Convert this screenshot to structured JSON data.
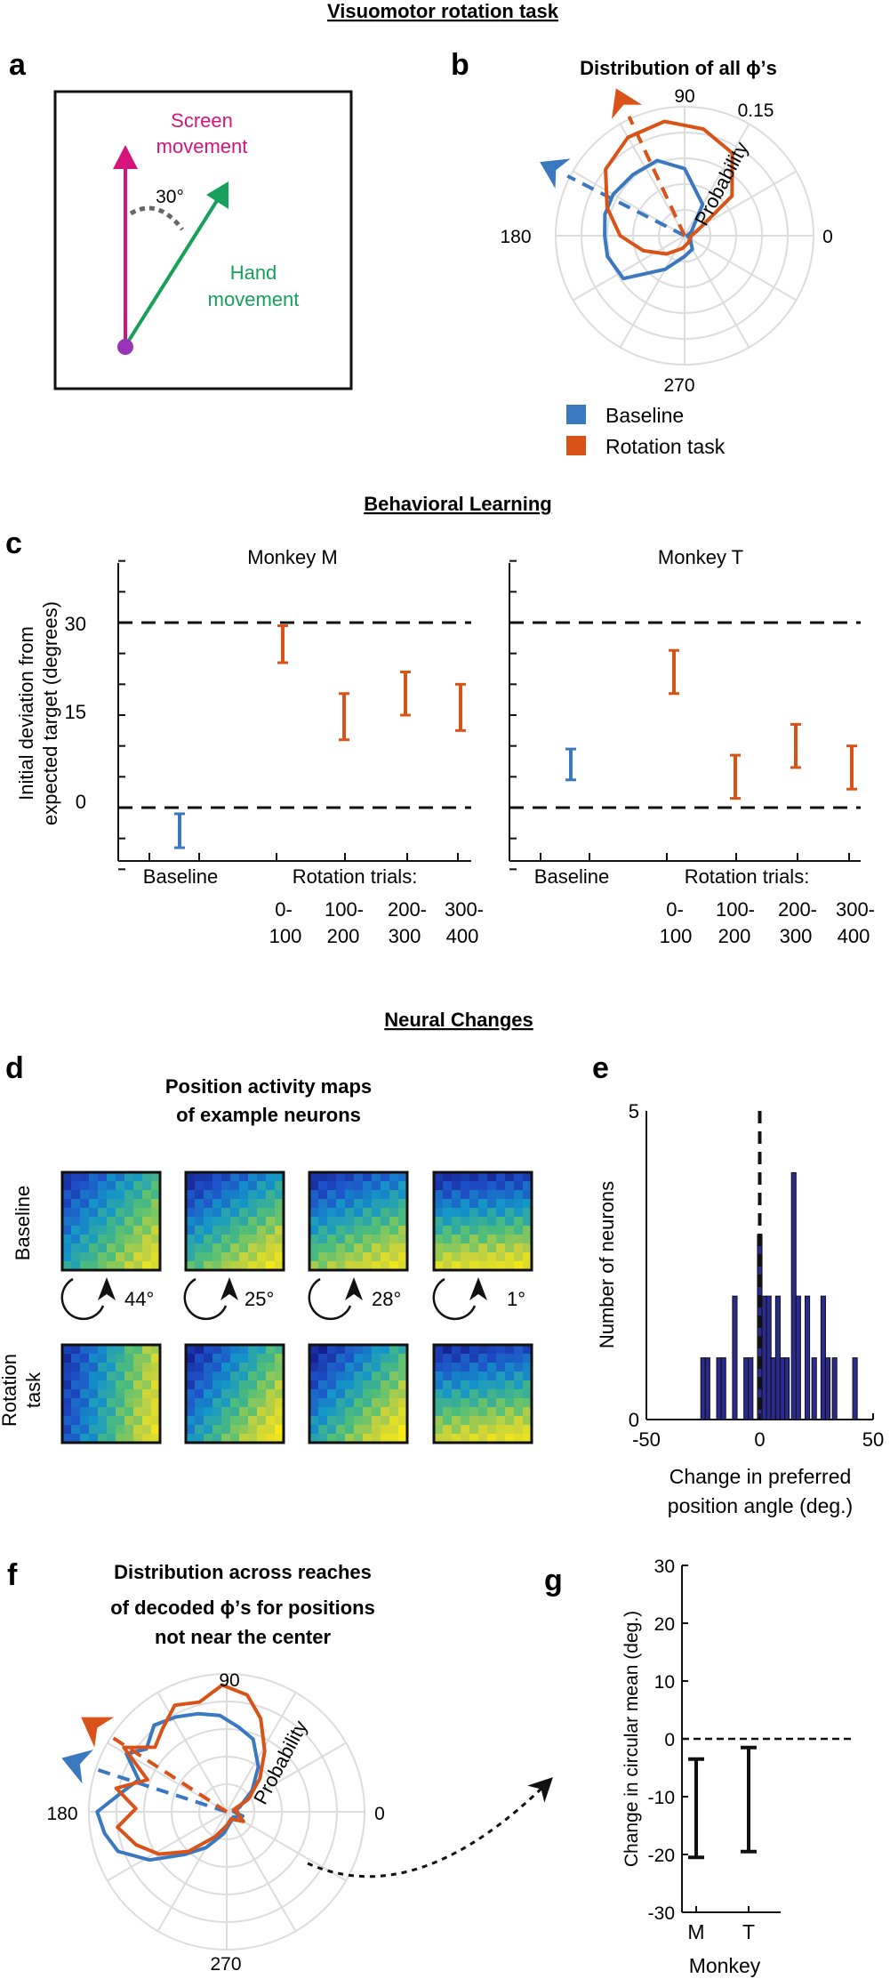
{
  "section_titles": {
    "visuomotor": "Visuomotor rotation task",
    "behavioral": "Behavioral Learning",
    "neural": "Neural Changes"
  },
  "panel_labels": {
    "a": "a",
    "b": "b",
    "c": "c",
    "d": "d",
    "e": "e",
    "f": "f",
    "g": "g"
  },
  "colors": {
    "baseline": "#3a78c0",
    "rotation": "#d95319",
    "screen": "#d4147a",
    "hand": "#17a05a",
    "origin": "#9a34b8",
    "grid": "#dcdcdc",
    "bar": "#2a2a8f"
  },
  "panel_a": {
    "screen_label": [
      "Screen",
      "movement"
    ],
    "hand_label": [
      "Hand",
      "movement"
    ],
    "angle_label": "30°"
  },
  "panel_b": {
    "title": "Distribution of all ϕ’s",
    "angle_labels": {
      "deg90": "90",
      "deg180": "180",
      "deg0": "0",
      "deg270": "270"
    },
    "radius_label": "0.15",
    "radial_axis_label": "Probability",
    "legend": [
      {
        "label": "Baseline",
        "color": "#3a78c0"
      },
      {
        "label": "Rotation task",
        "color": "#d95319"
      }
    ]
  },
  "panel_c": {
    "ylabel": [
      "Initial deviation from",
      "expected target (degrees)"
    ],
    "yticks": [
      "30",
      "15",
      "0"
    ],
    "baseline_label": "Baseline",
    "rotation_label": "Rotation trials:",
    "bins": [
      {
        "top": "0-",
        "bottom": "100"
      },
      {
        "top": "100-",
        "bottom": "200"
      },
      {
        "top": "200-",
        "bottom": "300"
      },
      {
        "top": "300-",
        "bottom": "400"
      }
    ]
  },
  "panel_d": {
    "title": [
      "Position activity maps",
      "of example neurons"
    ],
    "row_labels": {
      "baseline": "Baseline",
      "rotation": [
        "Rotation",
        "task"
      ]
    },
    "rotations": [
      "44°",
      "25°",
      "28°",
      "1°"
    ]
  },
  "panel_f": {
    "title": [
      "Distribution across reaches",
      "of decoded ϕ’s for positions",
      "not near the center"
    ],
    "angle_labels": {
      "deg90": "90",
      "deg180": "180",
      "deg0": "0",
      "deg270": "270"
    },
    "radial_axis_label": "Probability"
  },
  "chart_data": [
    {
      "id": "panel_b_polar",
      "type": "polar-line",
      "title": "Distribution of all ϕ’s",
      "radial_label": "Probability",
      "radial_max": 0.15,
      "series": [
        {
          "name": "Baseline",
          "circular_mean_deg": 153
        },
        {
          "name": "Rotation task",
          "circular_mean_deg": 115
        }
      ]
    },
    {
      "id": "panel_c_monkey_m",
      "type": "errorbar",
      "title": "Monkey M",
      "ylabel": "Initial deviation from expected target (degrees)",
      "ylim": [
        -10,
        40
      ],
      "yticks": [
        0,
        15,
        30
      ],
      "reference_lines": [
        0,
        30
      ],
      "categories": [
        "Baseline",
        "0-100",
        "100-200",
        "200-300",
        "300-400"
      ],
      "series": [
        {
          "name": "Baseline",
          "lower": [
            -6.5
          ],
          "upper": [
            -1
          ]
        },
        {
          "name": "Rotation task",
          "lower": [
            23.5,
            11,
            15,
            12.5
          ],
          "upper": [
            29.5,
            18.5,
            22,
            20
          ]
        }
      ]
    },
    {
      "id": "panel_c_monkey_t",
      "type": "errorbar",
      "title": "Monkey T",
      "ylim": [
        -10,
        40
      ],
      "yticks": [
        0,
        15,
        30
      ],
      "reference_lines": [
        0,
        30
      ],
      "categories": [
        "Baseline",
        "0-100",
        "100-200",
        "200-300",
        "300-400"
      ],
      "series": [
        {
          "name": "Baseline",
          "lower": [
            4.5
          ],
          "upper": [
            9.5
          ]
        },
        {
          "name": "Rotation task",
          "lower": [
            18.5,
            1.5,
            6.5,
            3
          ],
          "upper": [
            25.5,
            8.5,
            13.5,
            10
          ]
        }
      ]
    },
    {
      "id": "panel_e_hist",
      "type": "bar",
      "xlabel": "Change in preferred position angle (deg.)",
      "ylabel": "Number of neurons",
      "xlim": [
        -50,
        50
      ],
      "ylim": [
        0,
        5
      ],
      "xticks": [
        -50,
        0,
        50
      ],
      "yticks": [
        0,
        5
      ],
      "reference_line_x": 0,
      "bin_width": 2,
      "bins": [
        {
          "x": -25,
          "count": 1
        },
        {
          "x": -23,
          "count": 1
        },
        {
          "x": -18,
          "count": 1
        },
        {
          "x": -16,
          "count": 1
        },
        {
          "x": -11,
          "count": 2
        },
        {
          "x": -6,
          "count": 1
        },
        {
          "x": -4,
          "count": 1
        },
        {
          "x": 0,
          "count": 3
        },
        {
          "x": 2,
          "count": 2
        },
        {
          "x": 4,
          "count": 2
        },
        {
          "x": 6,
          "count": 1
        },
        {
          "x": 8,
          "count": 2
        },
        {
          "x": 10,
          "count": 1
        },
        {
          "x": 12,
          "count": 1
        },
        {
          "x": 15,
          "count": 4
        },
        {
          "x": 17,
          "count": 2
        },
        {
          "x": 21,
          "count": 2
        },
        {
          "x": 24,
          "count": 1
        },
        {
          "x": 28,
          "count": 2
        },
        {
          "x": 30,
          "count": 1
        },
        {
          "x": 33,
          "count": 1
        },
        {
          "x": 42,
          "count": 1
        }
      ]
    },
    {
      "id": "panel_f_polar",
      "type": "polar-line",
      "title": "Distribution across reaches of decoded ϕ’s for positions not near the center",
      "radial_label": "Probability",
      "series": [
        {
          "name": "Baseline",
          "circular_mean_deg": 162
        },
        {
          "name": "Rotation task",
          "circular_mean_deg": 147
        }
      ]
    },
    {
      "id": "panel_g_errorbar",
      "type": "errorbar",
      "xlabel": "Monkey",
      "ylabel": "Change in circular mean (deg.)",
      "ylim": [
        -30,
        30
      ],
      "yticks": [
        -30,
        -20,
        -10,
        0,
        10,
        20,
        30
      ],
      "reference_lines": [
        0
      ],
      "categories": [
        "M",
        "T"
      ],
      "lower": [
        -20.5,
        -19.5
      ],
      "upper": [
        -3.5,
        -1.5
      ]
    }
  ]
}
